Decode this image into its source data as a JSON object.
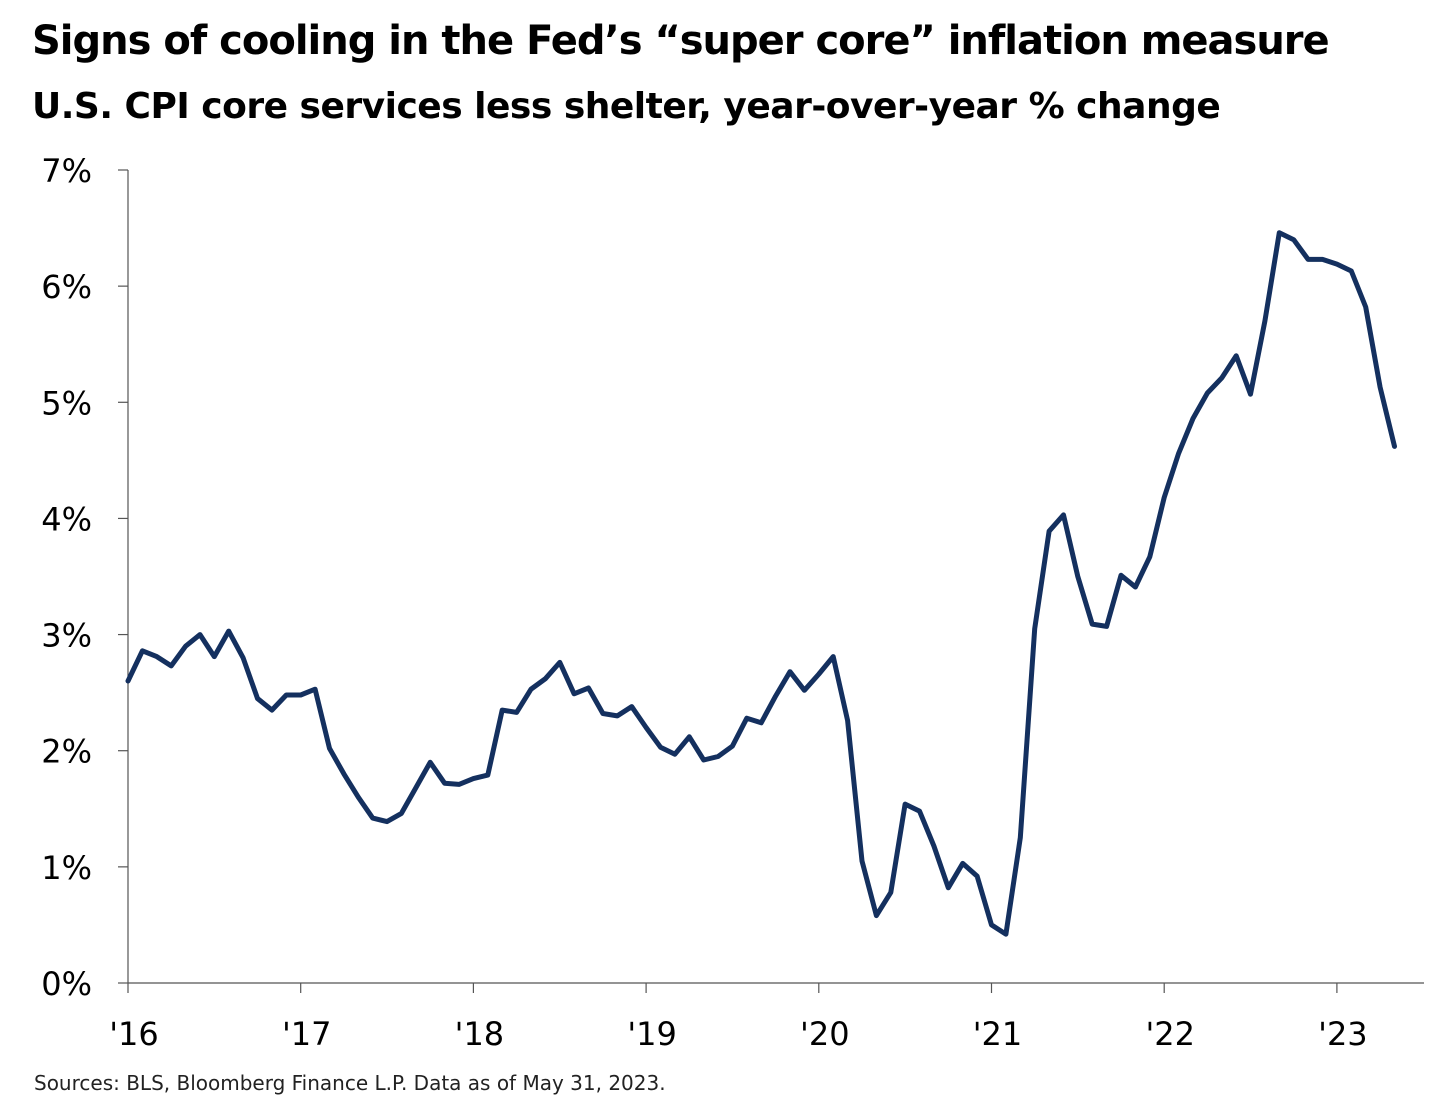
{
  "chart_data": {
    "type": "line",
    "title": "Signs of cooling in the Fed’s “super core” inflation measure",
    "subtitle": "U.S. CPI core services less shelter, year-over-year % change",
    "xlabel": "",
    "ylabel": "",
    "x_tick_labels": [
      "'16",
      "'17",
      "'18",
      "'19",
      "'20",
      "'21",
      "'22",
      "'23"
    ],
    "y_tick_labels": [
      "0%",
      "1%",
      "2%",
      "3%",
      "4%",
      "5%",
      "6%",
      "7%"
    ],
    "ylim": [
      0,
      7
    ],
    "xlim": [
      2016.0,
      2023.5
    ],
    "grid": false,
    "line_color": "#14305f",
    "series": [
      {
        "name": "U.S. CPI core services less shelter, YoY %",
        "start_year": 2016,
        "start_month": 1,
        "values": [
          2.6,
          2.86,
          2.81,
          2.73,
          2.9,
          3.0,
          2.81,
          3.03,
          2.8,
          2.45,
          2.35,
          2.48,
          2.48,
          2.53,
          2.02,
          1.8,
          1.6,
          1.42,
          1.39,
          1.46,
          1.68,
          1.9,
          1.72,
          1.71,
          1.76,
          1.79,
          2.35,
          2.33,
          2.53,
          2.62,
          2.76,
          2.49,
          2.54,
          2.32,
          2.3,
          2.38,
          2.2,
          2.03,
          1.97,
          2.12,
          1.92,
          1.95,
          2.04,
          2.28,
          2.24,
          2.47,
          2.68,
          2.52,
          2.66,
          2.81,
          2.26,
          1.05,
          0.58,
          0.78,
          1.54,
          1.48,
          1.18,
          0.82,
          1.03,
          0.92,
          0.5,
          0.42,
          1.25,
          3.05,
          3.89,
          4.03,
          3.5,
          3.09,
          3.07,
          3.51,
          3.41,
          3.67,
          4.18,
          4.56,
          4.86,
          5.08,
          5.21,
          5.4,
          5.07,
          5.7,
          6.46,
          6.4,
          6.23,
          6.23,
          6.19,
          6.13,
          5.82,
          5.13,
          4.62
        ]
      }
    ]
  },
  "source_text": "Sources: BLS, Bloomberg Finance L.P. Data as of May 31, 2023."
}
